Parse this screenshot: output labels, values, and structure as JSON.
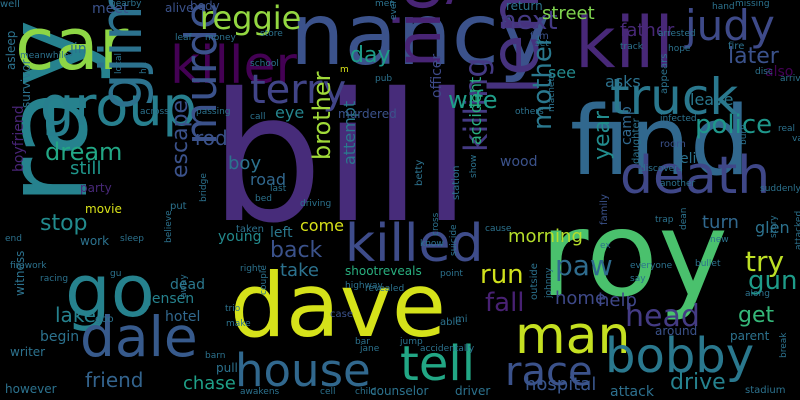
{
  "word_cloud": {
    "background": "#000000",
    "words": [
      {
        "text": "bill",
        "color": "#472c7a",
        "vertical": false
      },
      {
        "text": "roy",
        "color": "#4ac16d",
        "vertical": false
      },
      {
        "text": "dave",
        "color": "#d5e21a",
        "vertical": false
      },
      {
        "text": "ray",
        "color": "#26828e",
        "vertical": true
      },
      {
        "text": "car",
        "color": "#8ed645",
        "vertical": false
      },
      {
        "text": "nancy",
        "color": "#3b528b",
        "vertical": false
      },
      {
        "text": "kill",
        "color": "#482878",
        "vertical": false
      },
      {
        "text": "find",
        "color": "#31688e",
        "vertical": false
      },
      {
        "text": "killer",
        "color": "#440154",
        "vertical": false
      },
      {
        "text": "group",
        "color": "#277f8e",
        "vertical": false
      },
      {
        "text": "truck",
        "color": "#2a788e",
        "vertical": false
      },
      {
        "text": "lenny",
        "color": "#46327e",
        "vertical": true
      },
      {
        "text": "night",
        "color": "#482475",
        "vertical": true
      },
      {
        "text": "judy",
        "color": "#3e4a89",
        "vertical": false
      },
      {
        "text": "terry",
        "color": "#414487",
        "vertical": false
      },
      {
        "text": "death",
        "color": "#3f4788",
        "vertical": false
      },
      {
        "text": "gjimmy",
        "color": "#2c728e",
        "vertical": true
      },
      {
        "text": "go",
        "color": "#26828e",
        "vertical": false
      },
      {
        "text": "killed",
        "color": "#3e4c8a",
        "vertical": false
      },
      {
        "text": "murder",
        "color": "#3b528b",
        "vertical": true
      },
      {
        "text": "dale",
        "color": "#375a8c",
        "vertical": false
      },
      {
        "text": "house",
        "color": "#31688e",
        "vertical": false
      },
      {
        "text": "tell",
        "color": "#22a785",
        "vertical": false
      },
      {
        "text": "man",
        "color": "#c5e021",
        "vertical": false
      },
      {
        "text": "bobby",
        "color": "#2a788e",
        "vertical": false
      },
      {
        "text": "race",
        "color": "#3b528b",
        "vertical": false
      },
      {
        "text": "reggie",
        "color": "#93d741",
        "vertical": false
      },
      {
        "text": "brother",
        "color": "#a0da39",
        "vertical": true
      },
      {
        "text": "killing",
        "color": "#443a83",
        "vertical": true
      },
      {
        "text": "mother",
        "color": "#2a788e",
        "vertical": true
      },
      {
        "text": "police",
        "color": "#1f978b",
        "vertical": false
      },
      {
        "text": "try",
        "color": "#bddf26",
        "vertical": false
      },
      {
        "text": "gun",
        "color": "#1e9c89",
        "vertical": false
      },
      {
        "text": "head",
        "color": "#443b84",
        "vertical": false
      },
      {
        "text": "get",
        "color": "#35b779",
        "vertical": false
      },
      {
        "text": "fall",
        "color": "#482173",
        "vertical": false
      },
      {
        "text": "paw",
        "color": "#2f6c8e",
        "vertical": false
      },
      {
        "text": "run",
        "color": "#d0e11c",
        "vertical": false
      },
      {
        "text": "wife",
        "color": "#1f9e89",
        "vertical": false
      },
      {
        "text": "next",
        "color": "#443983",
        "vertical": false
      },
      {
        "text": "day",
        "color": "#1e9c89",
        "vertical": false
      },
      {
        "text": "dream",
        "color": "#22a785",
        "vertical": false
      },
      {
        "text": "stop",
        "color": "#228b8d",
        "vertical": false
      },
      {
        "text": "escape",
        "color": "#3b528b",
        "vertical": true
      },
      {
        "text": "lake",
        "color": "#26828e",
        "vertical": false
      },
      {
        "text": "friend",
        "color": "#33638d",
        "vertical": false
      },
      {
        "text": "chase",
        "color": "#1fa088",
        "vertical": false
      },
      {
        "text": "drive",
        "color": "#26828e",
        "vertical": false
      },
      {
        "text": "hospital",
        "color": "#39568c",
        "vertical": false
      },
      {
        "text": "attack",
        "color": "#2d708e",
        "vertical": false
      },
      {
        "text": "later",
        "color": "#3b528b",
        "vertical": false
      },
      {
        "text": "also",
        "color": "#440154",
        "vertical": false
      },
      {
        "text": "still",
        "color": "#1f968b",
        "vertical": false
      },
      {
        "text": "back",
        "color": "#3b528b",
        "vertical": false
      },
      {
        "text": "take",
        "color": "#2c728e",
        "vertical": false
      },
      {
        "text": "morning",
        "color": "#b5de2b",
        "vertical": false
      },
      {
        "text": "help",
        "color": "#3f4788",
        "vertical": false
      },
      {
        "text": "home",
        "color": "#3e4989",
        "vertical": false
      },
      {
        "text": "year",
        "color": "#228c8d",
        "vertical": true
      },
      {
        "text": "street",
        "color": "#7fd34e",
        "vertical": false
      },
      {
        "text": "father",
        "color": "#482878",
        "vertical": false
      },
      {
        "text": "leave",
        "color": "#2a788e",
        "vertical": false
      },
      {
        "text": "asks",
        "color": "#2c728e",
        "vertical": false
      },
      {
        "text": "see",
        "color": "#238a8d",
        "vertical": false
      },
      {
        "text": "wood",
        "color": "#3b528b",
        "vertical": false
      },
      {
        "text": "rod",
        "color": "#3b528b",
        "vertical": false
      },
      {
        "text": "boy",
        "color": "#2c728e",
        "vertical": false
      },
      {
        "text": "road",
        "color": "#31688e",
        "vertical": false
      },
      {
        "text": "eye",
        "color": "#25858e",
        "vertical": false
      },
      {
        "text": "officer",
        "color": "#3e4a89",
        "vertical": true
      },
      {
        "text": "accident",
        "color": "#29af7f",
        "vertical": true
      },
      {
        "text": "camp",
        "color": "#31688e",
        "vertical": true
      },
      {
        "text": "turn",
        "color": "#31688e",
        "vertical": false
      },
      {
        "text": "glen",
        "color": "#2c728e",
        "vertical": false
      },
      {
        "text": "eli",
        "color": "#2c728e",
        "vertical": false
      },
      {
        "text": "attempt",
        "color": "#2a788e",
        "vertical": true
      },
      {
        "text": "come",
        "color": "#d8e219",
        "vertical": false
      },
      {
        "text": "left",
        "color": "#2a788e",
        "vertical": false
      },
      {
        "text": "young",
        "color": "#238a8d",
        "vertical": false
      },
      {
        "text": "dead",
        "color": "#2a788e",
        "vertical": false
      },
      {
        "text": "hotel",
        "color": "#31688e",
        "vertical": false
      },
      {
        "text": "jensen",
        "color": "#26828e",
        "vertical": false
      },
      {
        "text": "begin",
        "color": "#2c728e",
        "vertical": false
      },
      {
        "text": "writer",
        "color": "#2c728e",
        "vertical": false
      },
      {
        "text": "boyfriend",
        "color": "#482475",
        "vertical": true
      },
      {
        "text": "survivor",
        "color": "#2c728e",
        "vertical": true
      },
      {
        "text": "asleep",
        "color": "#2c728e",
        "vertical": true
      },
      {
        "text": "meet",
        "color": "#3b528b",
        "vertical": false
      },
      {
        "text": "alive",
        "color": "#3b528b",
        "vertical": false
      },
      {
        "text": "body",
        "color": "#3b528b",
        "vertical": false
      },
      {
        "text": "jin",
        "color": "#2c728e",
        "vertical": false
      },
      {
        "text": "party",
        "color": "#482878",
        "vertical": false
      },
      {
        "text": "work",
        "color": "#2c728e",
        "vertical": false
      },
      {
        "text": "however",
        "color": "#2c728e",
        "vertical": false
      },
      {
        "text": "witness",
        "color": "#2c728e",
        "vertical": true
      },
      {
        "text": "parent",
        "color": "#2c728e",
        "vertical": false
      },
      {
        "text": "around",
        "color": "#3b528b",
        "vertical": false
      },
      {
        "text": "stadium",
        "color": "#2c728e",
        "vertical": false
      },
      {
        "text": "counselor",
        "color": "#2c728e",
        "vertical": false
      },
      {
        "text": "driver",
        "color": "#2c728e",
        "vertical": false
      },
      {
        "text": "pull",
        "color": "#2c728e",
        "vertical": false
      },
      {
        "text": "goo",
        "color": "#2c728e",
        "vertical": false
      },
      {
        "text": "mi",
        "color": "#2c728e",
        "vertical": false
      },
      {
        "text": "outside",
        "color": "#2c728e",
        "vertical": true
      },
      {
        "text": "shootreveals",
        "color": "#29af7f",
        "vertical": false
      },
      {
        "text": "murdered",
        "color": "#3b528b",
        "vertical": false
      },
      {
        "text": "return",
        "color": "#2c728e",
        "vertical": false
      },
      {
        "text": "film",
        "color": "#3b528b",
        "vertical": false
      },
      {
        "text": "daughter",
        "color": "#2c728e",
        "vertical": true
      },
      {
        "text": "appears",
        "color": "#2c728e",
        "vertical": true
      },
      {
        "text": "room",
        "color": "#3b528b",
        "vertical": false
      },
      {
        "text": "movie",
        "color": "#d8e219",
        "vertical": false
      },
      {
        "text": "station",
        "color": "#2c728e",
        "vertical": true
      },
      {
        "text": "machete",
        "color": "#2c728e",
        "vertical": true
      },
      {
        "text": "suicide",
        "color": "#2c728e",
        "vertical": true
      },
      {
        "text": "cross",
        "color": "#2c728e",
        "vertical": true
      },
      {
        "text": "bridge",
        "color": "#2c728e",
        "vertical": true
      },
      {
        "text": "believe",
        "color": "#2c728e",
        "vertical": true
      },
      {
        "text": "hit",
        "color": "#2c728e",
        "vertical": true
      },
      {
        "text": "family",
        "color": "#3b528b",
        "vertical": true
      },
      {
        "text": "fire",
        "color": "#2c728e",
        "vertical": false
      },
      {
        "text": "m",
        "color": "#d8e219",
        "vertical": false
      },
      {
        "text": "bar",
        "color": "#2c728e",
        "vertical": false
      },
      {
        "text": "jump",
        "color": "#2c728e",
        "vertical": false
      },
      {
        "text": "able",
        "color": "#2c728e",
        "vertical": false
      },
      {
        "text": "case",
        "color": "#3b528b",
        "vertical": false
      },
      {
        "text": "betty",
        "color": "#2c728e",
        "vertical": true
      },
      {
        "text": "driving",
        "color": "#2c728e",
        "vertical": false
      },
      {
        "text": "taken",
        "color": "#2c728e",
        "vertical": false
      },
      {
        "text": "away",
        "color": "#2c728e",
        "vertical": true
      },
      {
        "text": "put",
        "color": "#2c728e",
        "vertical": false
      },
      {
        "text": "gu",
        "color": "#2c728e",
        "vertical": false
      },
      {
        "text": "sleep",
        "color": "#2c728e",
        "vertical": false
      },
      {
        "text": "racing",
        "color": "#2c728e",
        "vertical": false
      },
      {
        "text": "firework",
        "color": "#2c728e",
        "vertical": false
      },
      {
        "text": "end",
        "color": "#2c728e",
        "vertical": false
      },
      {
        "text": "van",
        "color": "#2c728e",
        "vertical": false
      },
      {
        "text": "suddenly",
        "color": "#2c728e",
        "vertical": false
      },
      {
        "text": "burn",
        "color": "#2c728e",
        "vertical": true
      },
      {
        "text": "attacked",
        "color": "#2c728e",
        "vertical": true
      },
      {
        "text": "break",
        "color": "#2c728e",
        "vertical": true
      },
      {
        "text": "story",
        "color": "#2c728e",
        "vertical": true
      },
      {
        "text": "along",
        "color": "#2c728e",
        "vertical": false
      },
      {
        "text": "new",
        "color": "#2c728e",
        "vertical": false
      },
      {
        "text": "trap",
        "color": "#2c728e",
        "vertical": false
      },
      {
        "text": "another",
        "color": "#2c728e",
        "vertical": false
      },
      {
        "text": "discovers",
        "color": "#2c728e",
        "vertical": false
      },
      {
        "text": "infected",
        "color": "#2c728e",
        "vertical": false
      },
      {
        "text": "arrested",
        "color": "#2c728e",
        "vertical": false
      },
      {
        "text": "hope",
        "color": "#2c728e",
        "vertical": false
      },
      {
        "text": "hand",
        "color": "#2c728e",
        "vertical": false
      },
      {
        "text": "track",
        "color": "#2c728e",
        "vertical": false
      },
      {
        "text": "missing",
        "color": "#2c728e",
        "vertical": false
      },
      {
        "text": "disc",
        "color": "#2c728e",
        "vertical": false
      },
      {
        "text": "arrive",
        "color": "#2c728e",
        "vertical": false
      },
      {
        "text": "real",
        "color": "#2c728e",
        "vertical": false
      },
      {
        "text": "event",
        "color": "#2c728e",
        "vertical": true
      },
      {
        "text": "set",
        "color": "#2c728e",
        "vertical": false
      },
      {
        "text": "others",
        "color": "#2c728e",
        "vertical": false
      },
      {
        "text": "show",
        "color": "#2c728e",
        "vertical": true
      },
      {
        "text": "cause",
        "color": "#2c728e",
        "vertical": false
      },
      {
        "text": "know",
        "color": "#2c728e",
        "vertical": false
      },
      {
        "text": "point",
        "color": "#2c728e",
        "vertical": false
      },
      {
        "text": "revealed",
        "color": "#2c728e",
        "vertical": false
      },
      {
        "text": "jane",
        "color": "#2c728e",
        "vertical": false
      },
      {
        "text": "cell",
        "color": "#2c728e",
        "vertical": false
      },
      {
        "text": "child",
        "color": "#2c728e",
        "vertical": false
      },
      {
        "text": "awakens",
        "color": "#2c728e",
        "vertical": false
      },
      {
        "text": "accidentally",
        "color": "#2c728e",
        "vertical": false
      },
      {
        "text": "highway",
        "color": "#2c728e",
        "vertical": false
      },
      {
        "text": "couple",
        "color": "#2c728e",
        "vertical": true
      },
      {
        "text": "trio",
        "color": "#2c728e",
        "vertical": false
      },
      {
        "text": "make",
        "color": "#2c728e",
        "vertical": false
      },
      {
        "text": "barn",
        "color": "#2c728e",
        "vertical": false
      },
      {
        "text": "right",
        "color": "#2c728e",
        "vertical": false
      },
      {
        "text": "local",
        "color": "#2c728e",
        "vertical": true
      },
      {
        "text": "across",
        "color": "#2c728e",
        "vertical": false
      },
      {
        "text": "passing",
        "color": "#2c728e",
        "vertical": false
      },
      {
        "text": "meanwhile",
        "color": "#2c728e",
        "vertical": false
      },
      {
        "text": "nearby",
        "color": "#2c728e",
        "vertical": false
      },
      {
        "text": "leaf",
        "color": "#2c728e",
        "vertical": false
      },
      {
        "text": "money",
        "color": "#2c728e",
        "vertical": false
      },
      {
        "text": "store",
        "color": "#2c728e",
        "vertical": false
      },
      {
        "text": "school",
        "color": "#2c728e",
        "vertical": false
      },
      {
        "text": "pub",
        "color": "#2c728e",
        "vertical": false
      },
      {
        "text": "call",
        "color": "#2c728e",
        "vertical": false
      },
      {
        "text": "bed",
        "color": "#2c728e",
        "vertical": false
      },
      {
        "text": "last",
        "color": "#2c728e",
        "vertical": false
      },
      {
        "text": "ex",
        "color": "#2c728e",
        "vertical": false
      },
      {
        "text": "everyone",
        "color": "#2c728e",
        "vertical": false
      },
      {
        "text": "say",
        "color": "#2c728e",
        "vertical": false
      },
      {
        "text": "bullet",
        "color": "#2c728e",
        "vertical": false
      },
      {
        "text": "johnny",
        "color": "#2c728e",
        "vertical": true
      },
      {
        "text": "men",
        "color": "#2c728e",
        "vertical": false
      },
      {
        "text": "dean",
        "color": "#2c728e",
        "vertical": true
      },
      {
        "text": "well",
        "color": "#2c728e",
        "vertical": false
      }
    ]
  }
}
